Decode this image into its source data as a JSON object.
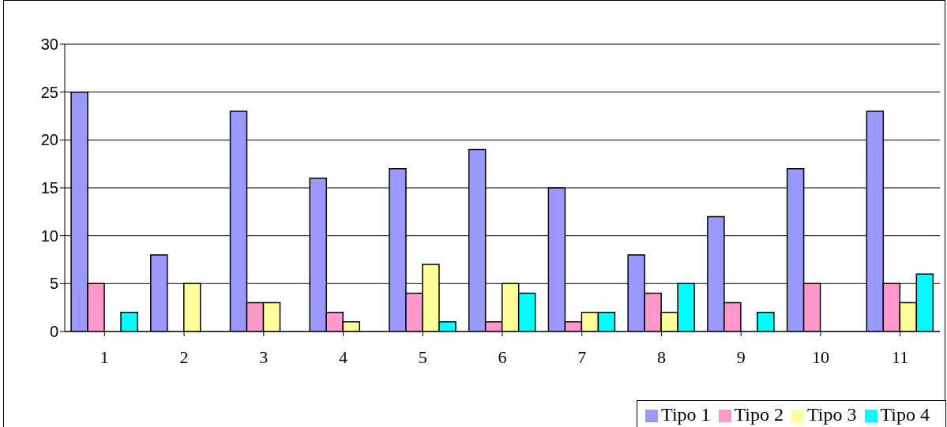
{
  "chart_data": {
    "type": "bar",
    "categories": [
      "1",
      "2",
      "3",
      "4",
      "5",
      "6",
      "7",
      "8",
      "9",
      "10",
      "11"
    ],
    "series": [
      {
        "name": "Tipo 1",
        "color": "#9999ff",
        "values": [
          25,
          8,
          23,
          16,
          17,
          19,
          15,
          8,
          12,
          17,
          23
        ]
      },
      {
        "name": "Tipo 2",
        "color": "#ff99cc",
        "values": [
          5,
          null,
          3,
          2,
          4,
          1,
          1,
          4,
          3,
          5,
          5
        ]
      },
      {
        "name": "Tipo 3",
        "color": "#ffff99",
        "values": [
          null,
          5,
          3,
          1,
          7,
          5,
          2,
          2,
          null,
          null,
          3
        ]
      },
      {
        "name": "Tipo 4",
        "color": "#00ffff",
        "values": [
          2,
          null,
          null,
          null,
          1,
          4,
          2,
          5,
          2,
          null,
          6
        ]
      }
    ],
    "ylim": [
      0,
      30
    ],
    "yticks": [
      0,
      5,
      10,
      15,
      20,
      25,
      30
    ],
    "grid": "y",
    "legend": "bottom right"
  }
}
